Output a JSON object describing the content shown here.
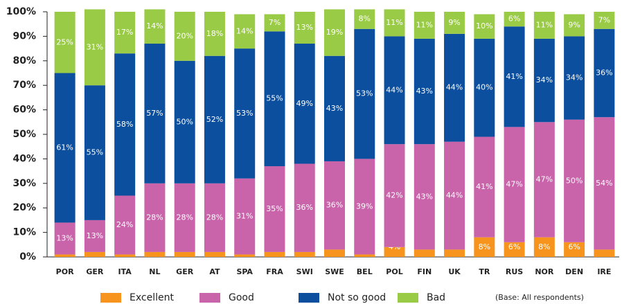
{
  "chart_data": {
    "type": "stacked_bar",
    "categories": [
      "POR",
      "GER",
      "ITA",
      "NL",
      "GER",
      "AT",
      "SPA",
      "FRA",
      "SWI",
      "SWE",
      "BEL",
      "POL",
      "FIN",
      "UK",
      "TR",
      "RUS",
      "NOR",
      "DEN",
      "IRE"
    ],
    "series": [
      {
        "name": "Excellent",
        "color": "#f7941d",
        "values": [
          1,
          2,
          1,
          2,
          2,
          2,
          1,
          2,
          2,
          3,
          1,
          4,
          3,
          3,
          8,
          6,
          8,
          6,
          3
        ],
        "value_labels": [
          "1%",
          "2%",
          "1%",
          "2%",
          "2%",
          "2%",
          "1%",
          "2%",
          "2%",
          "3%",
          "1%",
          "4%",
          "3%",
          "3%",
          "8%",
          "6%",
          "8%",
          "6%",
          "3%"
        ]
      },
      {
        "name": "Good",
        "color": "#c964aa",
        "values": [
          13,
          13,
          24,
          28,
          28,
          28,
          31,
          35,
          36,
          36,
          39,
          42,
          43,
          44,
          41,
          47,
          47,
          50,
          54
        ],
        "value_labels": [
          "13%",
          "13%",
          "24%",
          "28%",
          "28%",
          "28%",
          "31%",
          "35%",
          "36%",
          "36%",
          "39%",
          "42%",
          "43%",
          "44%",
          "41%",
          "47%",
          "47%",
          "50%",
          "54%"
        ]
      },
      {
        "name": "Not so good",
        "color": "#0c4f9e",
        "values": [
          61,
          55,
          58,
          57,
          50,
          52,
          53,
          55,
          49,
          43,
          53,
          44,
          43,
          44,
          40,
          41,
          34,
          34,
          36
        ],
        "value_labels": [
          "61%",
          "55%",
          "58%",
          "57%",
          "50%",
          "52%",
          "53%",
          "55%",
          "49%",
          "43%",
          "53%",
          "44%",
          "43%",
          "44%",
          "40%",
          "41%",
          "34%",
          "34%",
          "36%"
        ]
      },
      {
        "name": "Bad",
        "color": "#9acb46",
        "values": [
          25,
          31,
          17,
          14,
          20,
          18,
          14,
          7,
          13,
          19,
          8,
          11,
          11,
          9,
          10,
          6,
          11,
          9,
          7
        ],
        "value_labels": [
          "25%",
          "31%",
          "17%",
          "14%",
          "20%",
          "18%",
          "14%",
          "7%",
          "13%",
          "19%",
          "8%",
          "11%",
          "11%",
          "9%",
          "10%",
          "6%",
          "11%",
          "9%",
          "7%"
        ]
      }
    ],
    "ylim": [
      0,
      100
    ],
    "yticks": [
      {
        "value": 0,
        "label": "0%"
      },
      {
        "value": 10,
        "label": "10%"
      },
      {
        "value": 20,
        "label": "20%"
      },
      {
        "value": 30,
        "label": "30%"
      },
      {
        "value": 40,
        "label": "40%"
      },
      {
        "value": 50,
        "label": "50%"
      },
      {
        "value": 60,
        "label": "60%"
      },
      {
        "value": 70,
        "label": "70%"
      },
      {
        "value": 80,
        "label": "80%"
      },
      {
        "value": 90,
        "label": "90%"
      },
      {
        "value": 100,
        "label": "100%"
      }
    ],
    "annotation": "(Base: All respondents)"
  }
}
